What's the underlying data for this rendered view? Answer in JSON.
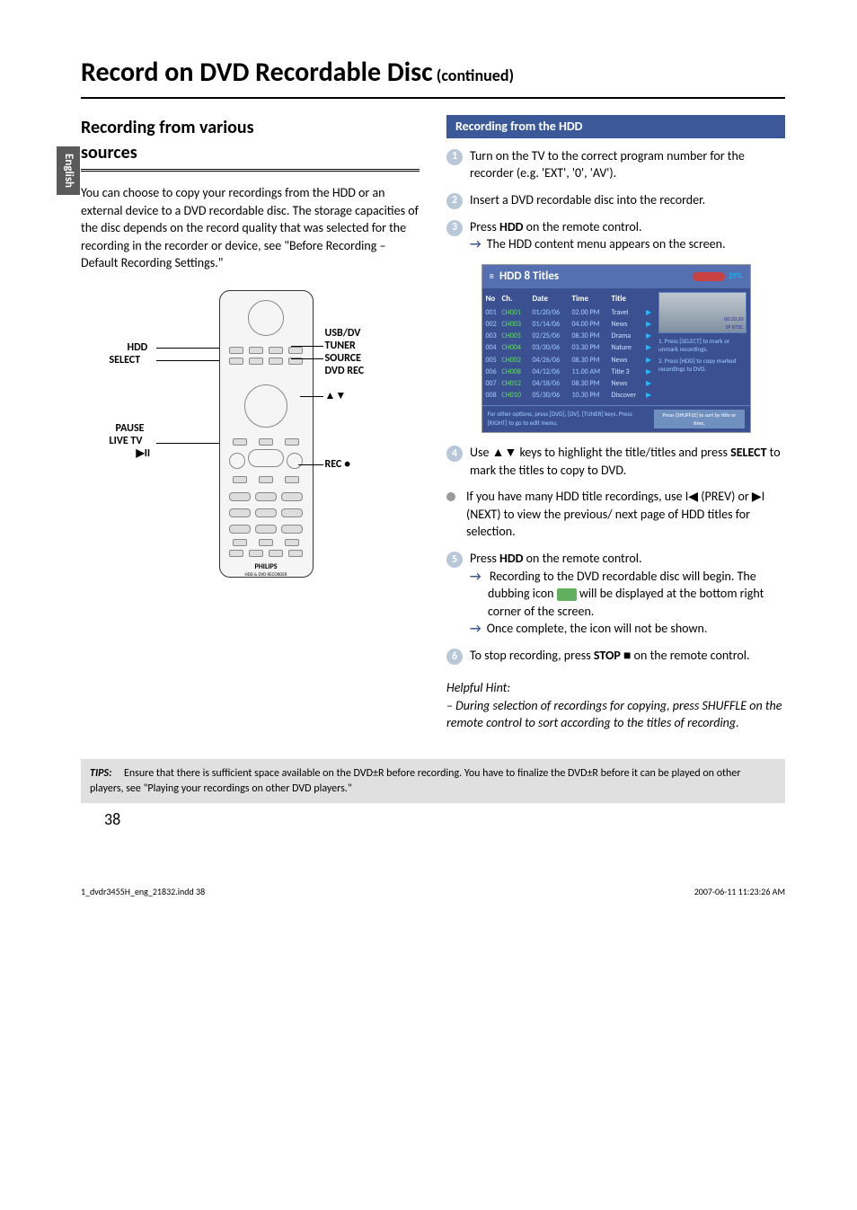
{
  "sidebar_label": "English",
  "main_title": "Record on DVD Recordable Disc",
  "main_title_suffix": " (continued)",
  "section_title_line1": "Recording from various",
  "section_title_line2": "sources",
  "intro_paragraph": "You can choose to copy your recordings from the HDD or an external device to a DVD recordable disc. The storage capacities of the disc depends on the record quality that was selected for the recording in the recorder or device, see \"Before Recording – Default Recording Settings.\"",
  "remote_labels": {
    "hdd": "HDD",
    "select": "SELECT",
    "usb_dv": "USB/DV",
    "tuner": "TUNER",
    "source": "SOURCE",
    "dvd_rec": "DVD REC",
    "arrows": "▲▼",
    "pause": "PAUSE",
    "live_tv": "LIVE TV",
    "play_pause": "▶II",
    "rec": "REC ●"
  },
  "remote_brand": "PHILIPS",
  "remote_sub": "HDD & DVD RECORDER",
  "banner_title": "Recording from the HDD",
  "step1": "Turn on the TV to the correct program number for the recorder (e.g. 'EXT', '0', 'AV').",
  "step2": "Insert a DVD recordable disc into the recorder.",
  "step3_a": "Press ",
  "step3_bold": "HDD",
  "step3_b": " on the remote control.",
  "step3_arrow": "The HDD content menu appears on the screen.",
  "hdd_screen": {
    "title": "HDD 8 Titles",
    "percent": "25%",
    "columns": [
      "No",
      "Ch.",
      "Date",
      "Time",
      "Title"
    ],
    "rows": [
      [
        "001",
        "CH001",
        "01/20/06",
        "02.00 PM",
        "Travel"
      ],
      [
        "002",
        "CH003",
        "01/14/06",
        "04.00 PM",
        "News"
      ],
      [
        "003",
        "CH005",
        "02/25/06",
        "08.30 PM",
        "Drama"
      ],
      [
        "004",
        "CH004",
        "03/30/06",
        "03.30 PM",
        "Nature"
      ],
      [
        "005",
        "CH002",
        "04/26/06",
        "08.30 PM",
        "News"
      ],
      [
        "006",
        "CH008",
        "04/12/06",
        "11.00 AM",
        "Title 3"
      ],
      [
        "007",
        "CH012",
        "04/18/06",
        "08.30 PM",
        "News"
      ],
      [
        "008",
        "CH010",
        "05/30/06",
        "10.30 PM",
        "Discover"
      ]
    ],
    "preview_time": "00:20:20",
    "preview_mode": "SP NTSC",
    "instruction1": "1. Press [SELECT] to mark or unmark recordings.",
    "instruction2": "2. Press [HDD] to copy marked recordings to DVD.",
    "footer_left": "For other options, press [DVD], [DV], [TUNER] keys. Press [RIGHT] to go to edit menu.",
    "footer_right": "Press [SHUFFLE] to sort by title or time."
  },
  "step4_a": "Use ▲▼ keys to highlight the title/titles and press ",
  "step4_bold": "SELECT",
  "step4_b": " to mark the titles to copy to DVD.",
  "bullet1": "If you have many HDD title recordings, use I◀ (PREV) or ▶I (NEXT) to view the previous/ next page of HDD titles for selection.",
  "step5_a": "Press ",
  "step5_bold": "HDD",
  "step5_b": " on the remote control.",
  "step5_arrow1_a": "Recording to the DVD recordable disc will begin. The dubbing icon ",
  "step5_arrow1_b": " will be displayed at the bottom right corner of the screen.",
  "step5_arrow2": "Once complete, the icon will not be shown.",
  "step6_a": "To stop recording, press ",
  "step6_bold": "STOP",
  "step6_b": " ■  on the remote control.",
  "hint_label": "Helpful Hint:",
  "hint_text": "– During selection of recordings for copying, press SHUFFLE on the remote control to sort according to the titles of recording.",
  "tips_label": "TIPS:",
  "tips_text": "Ensure that there is sufficient space available on the DVD±R before recording. You have to finalize the DVD±R before it can be played on other players, see \"Playing your recordings on other DVD players.\"",
  "page_number": "38",
  "footer_left": "1_dvdr3455H_eng_21832.indd   38",
  "footer_right": "2007-06-11   11:23:26 AM",
  "colors": {
    "banner_bg": "#3b5998",
    "step_circle_bg": "#b8c8d8",
    "hdd_header_bg": "#5570b0",
    "hdd_body_bg": "#3a5090",
    "tips_bg": "#e0e0e0"
  }
}
